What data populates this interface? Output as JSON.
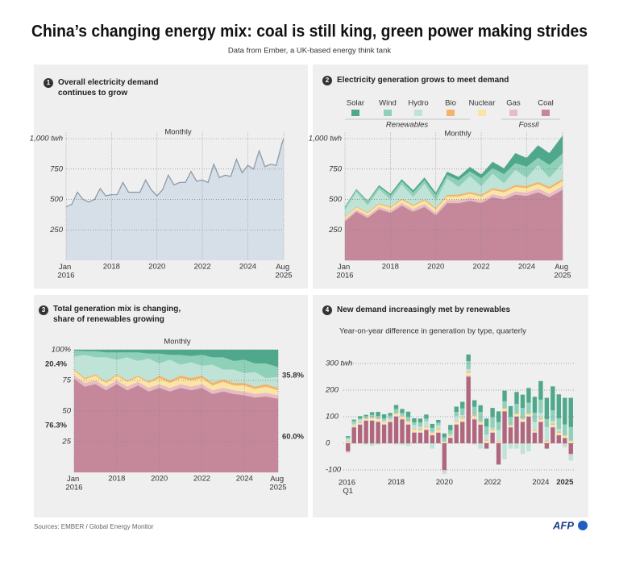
{
  "header": {
    "title": "China’s changing energy mix: coal is still king, green power making strides",
    "subtitle": "Data from Ember, a UK-based energy think tank"
  },
  "source": "Sources: EMBER / Global Energy Monitor",
  "logo": "AFP",
  "chart_data": [
    {
      "type": "area",
      "number": "1",
      "title": "Overall electricity demand continues to grow",
      "subtitle": "Monthly",
      "color": "#d6dfe8",
      "line_color": "#8c9ba7",
      "grid": true,
      "x": [
        2016,
        2016.25,
        2016.5,
        2016.75,
        2017,
        2017.25,
        2017.5,
        2017.75,
        2018,
        2018.25,
        2018.5,
        2018.75,
        2019,
        2019.25,
        2019.5,
        2019.75,
        2020,
        2020.25,
        2020.5,
        2020.75,
        2021,
        2021.25,
        2021.5,
        2021.75,
        2022,
        2022.25,
        2022.5,
        2022.75,
        2023,
        2023.25,
        2023.5,
        2023.75,
        2024,
        2024.25,
        2024.5,
        2024.75,
        2025,
        2025.25,
        2025.5,
        2025.58
      ],
      "values": [
        440,
        460,
        560,
        500,
        480,
        500,
        590,
        530,
        540,
        540,
        640,
        560,
        560,
        560,
        660,
        580,
        530,
        580,
        700,
        620,
        640,
        640,
        730,
        650,
        660,
        640,
        790,
        680,
        700,
        690,
        830,
        720,
        780,
        750,
        900,
        770,
        790,
        780,
        960,
        1000
      ],
      "xlim": [
        2016,
        2025.58
      ],
      "xticks": [
        {
          "value": 2016,
          "label": "Jan 2016"
        },
        2018,
        2020,
        2022,
        2024,
        {
          "value": 2025.58,
          "label": "Aug 2025"
        }
      ],
      "ylim": [
        0,
        1050
      ],
      "yticks": [
        250,
        500,
        750,
        {
          "value": 1000,
          "label": "1,000 twh"
        }
      ]
    },
    {
      "type": "stacked_area",
      "number": "2",
      "title": "Electricity generation grows to meet demand",
      "subtitle": "Monthly",
      "legend": true,
      "legend_groups": [
        "Renewables",
        "Fossil"
      ],
      "grid": true,
      "x": [
        2016,
        2016.5,
        2017,
        2017.5,
        2018,
        2018.5,
        2019,
        2019.5,
        2020,
        2020.5,
        2021,
        2021.5,
        2022,
        2022.5,
        2023,
        2023.5,
        2024,
        2024.5,
        2025,
        2025.58
      ],
      "series": [
        {
          "name": "Solar",
          "color": "#4fa88c",
          "values": [
            2,
            5,
            6,
            10,
            12,
            15,
            15,
            20,
            18,
            25,
            25,
            35,
            30,
            50,
            45,
            80,
            70,
            100,
            95,
            145
          ]
        },
        {
          "name": "Wind",
          "color": "#8fd0b8",
          "values": [
            22,
            18,
            27,
            22,
            33,
            25,
            38,
            28,
            45,
            30,
            55,
            40,
            65,
            45,
            75,
            55,
            90,
            60,
            105,
            80
          ]
        },
        {
          "name": "Hydro",
          "color": "#bfe3d6",
          "values": [
            60,
            120,
            60,
            115,
            60,
            120,
            65,
            130,
            60,
            135,
            65,
            130,
            70,
            120,
            60,
            125,
            70,
            140,
            75,
            130
          ]
        },
        {
          "name": "Bio",
          "color": "#f2b46a",
          "values": [
            5,
            6,
            7,
            8,
            8,
            9,
            9,
            10,
            11,
            12,
            13,
            14,
            14,
            15,
            15,
            16,
            16,
            17,
            17,
            18
          ]
        },
        {
          "name": "Nuclear",
          "color": "#fbe5a6",
          "values": [
            16,
            18,
            20,
            22,
            23,
            25,
            26,
            28,
            28,
            31,
            32,
            34,
            34,
            35,
            35,
            37,
            37,
            38,
            40,
            42
          ]
        },
        {
          "name": "Gas",
          "color": "#e6bcc5",
          "values": [
            15,
            18,
            18,
            20,
            20,
            22,
            22,
            24,
            22,
            25,
            25,
            24,
            22,
            24,
            25,
            27,
            28,
            30,
            28,
            30
          ]
        },
        {
          "name": "Coal",
          "color": "#c4889a",
          "values": [
            320,
            400,
            350,
            420,
            390,
            450,
            400,
            440,
            370,
            470,
            470,
            490,
            470,
            520,
            500,
            540,
            530,
            560,
            520,
            580
          ]
        }
      ],
      "xlim": [
        2016,
        2025.58
      ],
      "xticks": [
        {
          "value": 2016,
          "label": "Jan 2016"
        },
        2018,
        2020,
        2022,
        2024,
        {
          "value": 2025.58,
          "label": "Aug 2025"
        }
      ],
      "ylim": [
        0,
        1050
      ],
      "yticks": [
        250,
        500,
        750,
        {
          "value": 1000,
          "label": "1,000 twh"
        }
      ]
    },
    {
      "type": "stacked_area",
      "number": "3",
      "title": "Total generation mix is changing, share of renewables growing",
      "subtitle": "Monthly",
      "grid": true,
      "x": [
        2016,
        2016.5,
        2017,
        2017.5,
        2018,
        2018.5,
        2019,
        2019.5,
        2020,
        2020.5,
        2021,
        2021.5,
        2022,
        2022.5,
        2023,
        2023.5,
        2024,
        2024.5,
        2025,
        2025.58
      ],
      "series": [
        {
          "name": "Solar",
          "color": "#4fa88c",
          "values": [
            0.5,
            1,
            1,
            2,
            2,
            2,
            2,
            3,
            3,
            4,
            4,
            5,
            4,
            6,
            6,
            9,
            8,
            11,
            11,
            14
          ]
        },
        {
          "name": "Wind",
          "color": "#8fd0b8",
          "values": [
            5,
            3,
            5,
            4,
            6,
            4,
            7,
            4,
            8,
            4,
            8,
            5,
            9,
            6,
            10,
            7,
            11,
            7,
            12,
            8
          ]
        },
        {
          "name": "Hydro",
          "color": "#bfe3d6",
          "values": [
            10.2,
            19,
            14,
            20,
            12,
            19,
            12,
            19,
            10,
            17,
            9,
            13,
            8,
            15,
            8,
            11,
            8,
            12,
            5,
            9
          ]
        },
        {
          "name": "Bio",
          "color": "#f2b46a",
          "values": [
            1,
            1,
            1,
            1,
            1,
            1,
            1,
            1,
            2,
            2,
            2,
            2,
            2,
            2,
            2,
            2,
            2,
            2,
            2,
            2
          ]
        },
        {
          "name": "Nuclear",
          "color": "#fbe5a6",
          "values": [
            4,
            3,
            4,
            3,
            4,
            4,
            4,
            4,
            5,
            4,
            5,
            5,
            5,
            4,
            5,
            4,
            5,
            4,
            5,
            4
          ]
        },
        {
          "name": "Gas",
          "color": "#e6bcc5",
          "values": [
            3,
            3,
            3,
            3,
            3,
            3,
            3,
            3,
            3,
            3,
            3,
            3,
            3,
            3,
            3,
            3,
            3,
            3,
            3,
            3
          ]
        },
        {
          "name": "Coal",
          "color": "#c4889a",
          "values": [
            76.3,
            70,
            72,
            67,
            72,
            67,
            71,
            66,
            69,
            66,
            69,
            67,
            69,
            64,
            66,
            64,
            63,
            61,
            62,
            60.0
          ]
        }
      ],
      "annotations": [
        {
          "text": "20.4%",
          "color": "#4fa88c"
        },
        {
          "text": "76.3%",
          "color": "#b0677e"
        },
        {
          "text": "35.8%",
          "color": "#4fa88c"
        },
        {
          "text": "60.0%",
          "color": "#b0677e"
        }
      ],
      "xlim": [
        2016,
        2025.58
      ],
      "xticks": [
        {
          "value": 2016,
          "label": "Jan 2016"
        },
        2018,
        2020,
        2022,
        2024,
        {
          "value": 2025.58,
          "label": "Aug 2025"
        }
      ],
      "ylim": [
        0,
        100
      ],
      "yticks": [
        25,
        50,
        75,
        {
          "value": 100,
          "label": "100%"
        }
      ]
    },
    {
      "type": "stacked_bar",
      "number": "4",
      "title": "New demand increasingly met by renewables",
      "subtitle": "Year-on-year difference in generation by type, quarterly",
      "grid": true,
      "categories": [
        "2016 Q1",
        null,
        null,
        null,
        null,
        null,
        null,
        null,
        "2018",
        null,
        null,
        null,
        null,
        null,
        null,
        null,
        "2020",
        null,
        null,
        null,
        null,
        null,
        null,
        null,
        "2022",
        null,
        null,
        null,
        null,
        null,
        null,
        null,
        "2024",
        null,
        null,
        null,
        "2025",
        null
      ],
      "series": [
        {
          "name": "Solar",
          "color": "#4fa88c",
          "values": [
            5,
            5,
            8,
            5,
            10,
            15,
            15,
            10,
            15,
            15,
            20,
            15,
            15,
            15,
            15,
            10,
            15,
            20,
            20,
            25,
            25,
            25,
            25,
            30,
            35,
            40,
            40,
            40,
            45,
            50,
            55,
            60,
            70,
            80,
            90,
            90,
            100,
            110
          ]
        },
        {
          "name": "Wind",
          "color": "#8fd0b8",
          "values": [
            5,
            10,
            5,
            8,
            10,
            10,
            8,
            10,
            15,
            10,
            15,
            10,
            15,
            10,
            15,
            10,
            15,
            15,
            15,
            25,
            30,
            30,
            35,
            30,
            40,
            30,
            25,
            30,
            35,
            40,
            40,
            35,
            50,
            30,
            40,
            40,
            40,
            50
          ]
        },
        {
          "name": "Hydro",
          "color": "#bfe3d6",
          "values": [
            10,
            5,
            10,
            -5,
            -10,
            -5,
            5,
            5,
            -5,
            -5,
            -10,
            15,
            10,
            20,
            -20,
            15,
            -10,
            5,
            20,
            10,
            10,
            -5,
            -20,
            20,
            5,
            40,
            -60,
            -20,
            -20,
            -40,
            -30,
            30,
            20,
            50,
            10,
            10,
            -10,
            -20
          ]
        },
        {
          "name": "Bio",
          "color": "#f2b46a",
          "values": [
            2,
            2,
            2,
            2,
            2,
            2,
            2,
            2,
            3,
            3,
            3,
            3,
            3,
            3,
            3,
            3,
            2,
            2,
            2,
            3,
            4,
            4,
            3,
            3,
            3,
            3,
            3,
            3,
            3,
            3,
            3,
            3,
            4,
            4,
            4,
            4,
            3,
            3
          ]
        },
        {
          "name": "Nuclear",
          "color": "#fbe5a6",
          "values": [
            5,
            5,
            5,
            5,
            8,
            8,
            6,
            5,
            8,
            8,
            8,
            8,
            8,
            8,
            8,
            8,
            5,
            5,
            8,
            10,
            10,
            10,
            8,
            8,
            8,
            5,
            8,
            5,
            8,
            8,
            8,
            5,
            8,
            5,
            8,
            8,
            8,
            8
          ]
        },
        {
          "name": "Gas",
          "color": "#e6bcc5",
          "values": [
            -5,
            2,
            2,
            2,
            2,
            3,
            3,
            2,
            3,
            3,
            3,
            3,
            2,
            2,
            2,
            2,
            -5,
            2,
            3,
            3,
            5,
            3,
            2,
            2,
            2,
            2,
            2,
            2,
            2,
            2,
            2,
            2,
            2,
            2,
            2,
            2,
            -5,
            -5
          ]
        },
        {
          "name": "Coal",
          "color": "#b0677e",
          "values": [
            -30,
            60,
            70,
            85,
            85,
            80,
            70,
            80,
            100,
            90,
            70,
            40,
            40,
            50,
            30,
            40,
            -100,
            20,
            70,
            80,
            250,
            90,
            70,
            -20,
            40,
            -80,
            120,
            60,
            100,
            80,
            100,
            40,
            80,
            -20,
            60,
            30,
            20,
            -40
          ]
        }
      ],
      "ylim": [
        -120,
        350
      ],
      "yticks": [
        -100,
        0,
        100,
        200,
        {
          "value": 300,
          "label": "300 twh"
        }
      ]
    }
  ]
}
